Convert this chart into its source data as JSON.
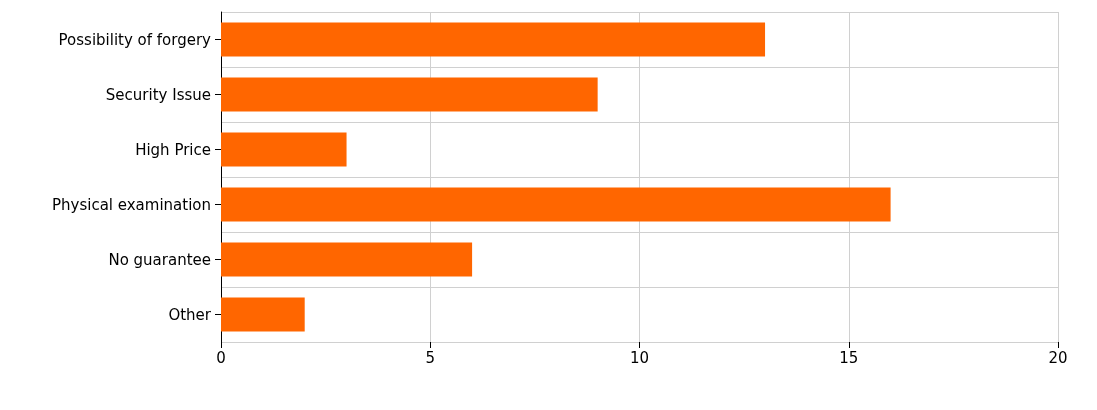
{
  "chart_data": {
    "type": "bar",
    "orientation": "horizontal",
    "categories": [
      "Possibility of forgery",
      "Security Issue",
      "High Price",
      "Physical examination",
      "No guarantee",
      "Other"
    ],
    "values": [
      13,
      9,
      3,
      16,
      6,
      2
    ],
    "color": "#ff6600",
    "xlim": [
      0,
      20
    ],
    "xticks": [
      0,
      5,
      10,
      15,
      20
    ],
    "grid": true
  }
}
